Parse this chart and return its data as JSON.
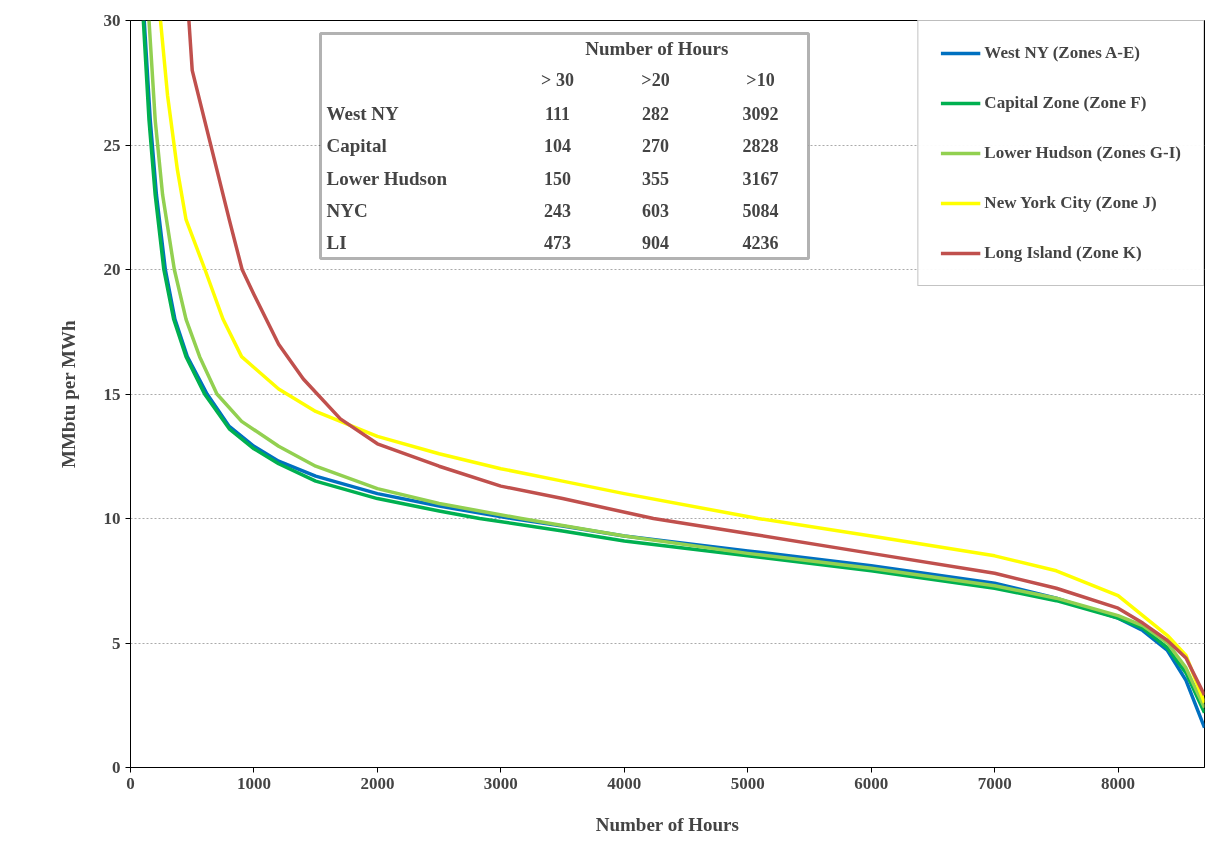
{
  "chart_data": {
    "type": "line",
    "xlabel": "Number of Hours",
    "ylabel": "MMbtu per MWh",
    "xlim": [
      0,
      8700
    ],
    "xticks": [
      0,
      1000,
      2000,
      3000,
      4000,
      5000,
      6000,
      7000,
      8000
    ],
    "ylim": [
      0,
      30
    ],
    "yticks": [
      0,
      5,
      10,
      15,
      20,
      25,
      30
    ],
    "grid": "y",
    "legend": "top right",
    "marker": "none",
    "line_style": "solid",
    "series": [
      {
        "name": "West NY (Zones A-E)",
        "color": "#0070c0",
        "x": [
          111,
          160,
          210,
          282,
          360,
          460,
          620,
          800,
          1000,
          1200,
          1500,
          2000,
          2500,
          3092,
          3500,
          4000,
          5000,
          6000,
          7000,
          7500,
          8000,
          8200,
          8400,
          8550,
          8700
        ],
        "values": [
          30,
          26,
          23,
          20,
          18,
          16.5,
          15,
          13.7,
          12.9,
          12.3,
          11.7,
          11.0,
          10.5,
          10,
          9.7,
          9.3,
          8.7,
          8.1,
          7.4,
          6.8,
          6.0,
          5.5,
          4.7,
          3.5,
          1.6
        ]
      },
      {
        "name": "Capital Zone (Zone F)",
        "color": "#00b050",
        "x": [
          104,
          150,
          200,
          270,
          350,
          450,
          600,
          800,
          1000,
          1200,
          1500,
          2000,
          2500,
          2828,
          3500,
          4000,
          5000,
          6000,
          7000,
          7500,
          8000,
          8200,
          8400,
          8550,
          8700
        ],
        "values": [
          30,
          26,
          23,
          20,
          18,
          16.5,
          15,
          13.6,
          12.8,
          12.2,
          11.5,
          10.8,
          10.3,
          10,
          9.5,
          9.1,
          8.5,
          7.9,
          7.2,
          6.7,
          6.0,
          5.6,
          4.8,
          3.8,
          2.2
        ]
      },
      {
        "name": "Lower Hudson (Zones G-I)",
        "color": "#92d050",
        "x": [
          150,
          200,
          260,
          355,
          450,
          560,
          700,
          900,
          1200,
          1500,
          2000,
          2500,
          3167,
          4000,
          5000,
          6000,
          7000,
          7500,
          8000,
          8200,
          8400,
          8550,
          8700
        ],
        "values": [
          30,
          26,
          23,
          20,
          18,
          16.5,
          15,
          13.9,
          12.9,
          12.1,
          11.2,
          10.6,
          10,
          9.3,
          8.6,
          8.0,
          7.3,
          6.8,
          6.1,
          5.7,
          5.0,
          4.0,
          2.4
        ]
      },
      {
        "name": "New York City (Zone J)",
        "color": "#ffff00",
        "x": [
          243,
          300,
          380,
          450,
          603,
          750,
          900,
          1200,
          1500,
          2000,
          2500,
          3000,
          3500,
          4000,
          5084,
          6000,
          7000,
          7500,
          8000,
          8200,
          8400,
          8550,
          8700
        ],
        "values": [
          30,
          27,
          24,
          22,
          20,
          18,
          16.5,
          15.2,
          14.3,
          13.3,
          12.6,
          12.0,
          11.5,
          11.0,
          10,
          9.3,
          8.5,
          7.9,
          6.9,
          6.1,
          5.3,
          4.5,
          2.6
        ]
      },
      {
        "name": "Long Island (Zone K)",
        "color": "#c0504d",
        "x": [
          473,
          500,
          600,
          700,
          800,
          904,
          1000,
          1200,
          1400,
          1700,
          2000,
          2500,
          3000,
          3500,
          4236,
          5000,
          6000,
          7000,
          7500,
          8000,
          8200,
          8400,
          8550,
          8700
        ],
        "values": [
          30,
          28,
          26,
          24,
          22,
          20,
          19,
          17,
          15.6,
          14,
          13,
          12.1,
          11.3,
          10.8,
          10,
          9.4,
          8.6,
          7.8,
          7.2,
          6.4,
          5.8,
          5.1,
          4.4,
          2.9
        ]
      }
    ],
    "annotations": [
      "Number of Hours",
      "> 30",
      ">20",
      ">10",
      "West NY",
      "111",
      "282",
      "3092",
      "Capital",
      "104",
      "270",
      "2828",
      "Lower Hudson",
      "150",
      "355",
      "3167",
      "NYC",
      "243",
      "603",
      "5084",
      "LI",
      "473",
      "904",
      "4236"
    ]
  }
}
